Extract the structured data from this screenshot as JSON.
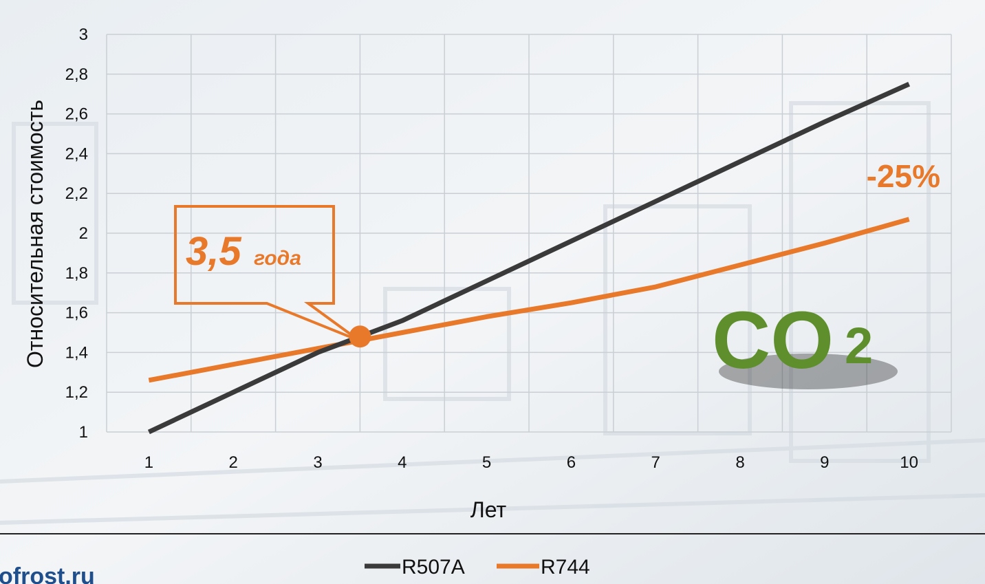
{
  "colors": {
    "r507a": "#3a3a3a",
    "r744": "#e8792b",
    "grid": "#c9cfd4",
    "brand": "#1f4e8c"
  },
  "site_text": "ofrost.ru",
  "badge": {
    "icon": "co2-grass-icon",
    "main": "CO",
    "sub": "2"
  },
  "chart_data": {
    "type": "line",
    "title": "",
    "xlabel": "Лет",
    "ylabel": "Относительная стоимость",
    "x": [
      1,
      2,
      3,
      4,
      5,
      6,
      7,
      8,
      9,
      10
    ],
    "xticks": [
      "1",
      "2",
      "3",
      "4",
      "5",
      "6",
      "7",
      "8",
      "9",
      "10"
    ],
    "yticks": [
      "1",
      "1,2",
      "1,4",
      "1,6",
      "1,8",
      "2",
      "2,2",
      "2,4",
      "2,6",
      "2,8",
      "3"
    ],
    "ylim": [
      1,
      3
    ],
    "grid": true,
    "legend": "bottom",
    "series": [
      {
        "name": "R507A",
        "values": [
          1.0,
          1.2,
          1.4,
          1.56,
          1.76,
          1.96,
          2.16,
          2.36,
          2.56,
          2.75
        ]
      },
      {
        "name": "R744",
        "values": [
          1.26,
          1.34,
          1.42,
          1.5,
          1.58,
          1.65,
          1.73,
          1.84,
          1.95,
          2.07
        ]
      }
    ],
    "annotations": {
      "breakeven": {
        "x": 3.5,
        "y": 1.48,
        "label_value": "3,5",
        "label_unit": "года"
      },
      "savings": "-25%"
    }
  }
}
